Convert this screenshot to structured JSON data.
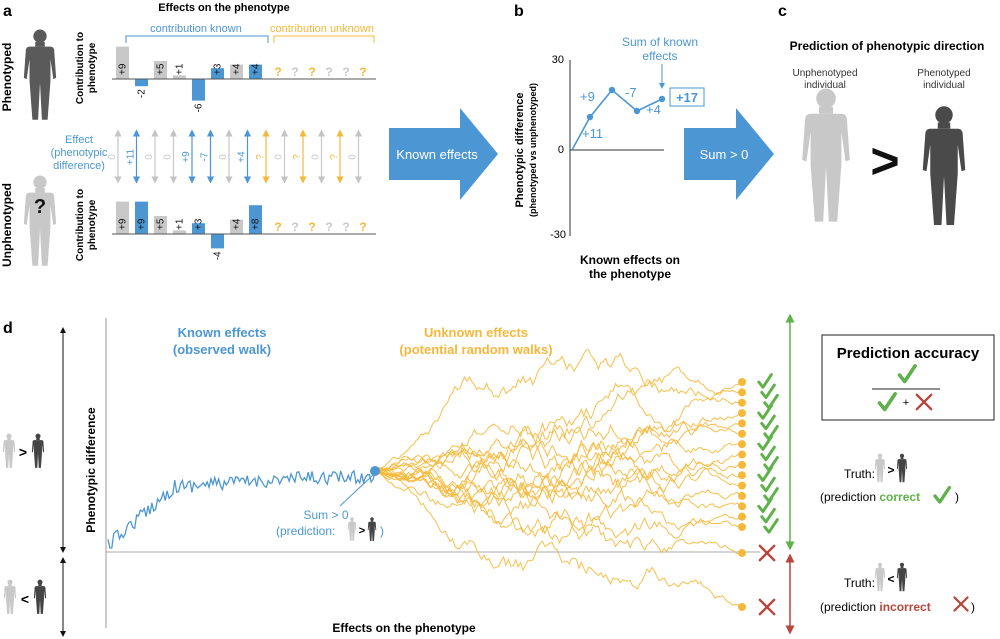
{
  "colors": {
    "blue": "#4c97d3",
    "orange": "#f6b83a",
    "grey": "#c8c8c8",
    "dark": "#3e3e3e",
    "light_grey": "#c4c4c4",
    "green": "#5fb14a",
    "red": "#b8463c"
  },
  "panel_a": {
    "label": "a",
    "title": "Effects on the phenotype",
    "known_label": "contribution known",
    "unknown_label": "contribution unknown",
    "row_phenotyped": "Phenotyped",
    "row_unphenotyped": "Unphenotyped",
    "contribution_axis": "Contribution to phenotype",
    "effect_axis": "Effect (phenotypic difference)",
    "unknown_glyph": "?",
    "phenotyped_bars": [
      {
        "label": "+9",
        "value": 9,
        "color": "grey"
      },
      {
        "label": "-2",
        "value": -2,
        "color": "blue"
      },
      {
        "label": "+5",
        "value": 5,
        "color": "grey"
      },
      {
        "label": "+1",
        "value": 1,
        "color": "grey"
      },
      {
        "label": "-6",
        "value": -6,
        "color": "blue"
      },
      {
        "label": "+3",
        "value": 3,
        "color": "blue"
      },
      {
        "label": "+4",
        "value": 4,
        "color": "grey"
      },
      {
        "label": "+4",
        "value": 4,
        "color": "blue"
      }
    ],
    "effects": [
      {
        "label": "0",
        "color": "grey"
      },
      {
        "label": "+11",
        "color": "blue"
      },
      {
        "label": "0",
        "color": "grey"
      },
      {
        "label": "0",
        "color": "grey"
      },
      {
        "label": "+9",
        "color": "blue"
      },
      {
        "label": "-7",
        "color": "blue"
      },
      {
        "label": "0",
        "color": "grey"
      },
      {
        "label": "+4",
        "color": "blue"
      },
      {
        "label": "?",
        "color": "orange"
      },
      {
        "label": "0",
        "color": "grey"
      },
      {
        "label": "?",
        "color": "orange"
      },
      {
        "label": "0",
        "color": "grey"
      },
      {
        "label": "?",
        "color": "orange"
      },
      {
        "label": "0",
        "color": "grey"
      }
    ],
    "unphenotyped_bars": [
      {
        "label": "+9",
        "value": 9,
        "color": "grey"
      },
      {
        "label": "+9",
        "value": 9,
        "color": "blue"
      },
      {
        "label": "+5",
        "value": 5,
        "color": "grey"
      },
      {
        "label": "+1",
        "value": 1,
        "color": "grey"
      },
      {
        "label": "+3",
        "value": 3,
        "color": "blue"
      },
      {
        "label": "-4",
        "value": -4,
        "color": "blue"
      },
      {
        "label": "+4",
        "value": 4,
        "color": "grey"
      },
      {
        "label": "+8",
        "value": 8,
        "color": "blue"
      }
    ],
    "unknown_marks": [
      {
        "color": "orange"
      },
      {
        "color": "grey"
      },
      {
        "color": "orange"
      },
      {
        "color": "grey"
      },
      {
        "color": "grey"
      },
      {
        "color": "orange"
      }
    ],
    "arrow_label": "Known effects"
  },
  "panel_b": {
    "label": "b",
    "ylabel": "Phenotypic difference",
    "ylabel_sub": "(phenotyped vs unphenotyped)",
    "xlabel": "Known effects on the phenotype",
    "tick_top": "30",
    "tick_zero": "0",
    "tick_bottom": "-30",
    "ylim": [
      -30,
      30
    ],
    "walk_points": [
      0,
      11,
      20,
      13,
      17
    ],
    "step_labels": [
      "+11",
      "+9",
      "-7",
      "+4"
    ],
    "sum_annotation": "Sum of known effects",
    "sum_value": "+17",
    "arrow_label": "Sum > 0"
  },
  "panel_c": {
    "label": "c",
    "title": "Prediction of phenotypic direction",
    "left_caption": "Unphenotyped individual",
    "right_caption": "Phenotyped individual",
    "comparator": ">"
  },
  "panel_d": {
    "label": "d",
    "ylabel": "Phenotypic difference",
    "xlabel": "Effects on the phenotype",
    "known_title": "Known effects",
    "known_sub": "(observed walk)",
    "unknown_title": "Unknown effects",
    "unknown_sub": "(potential random walks)",
    "sum_label": "Sum > 0",
    "prediction_label": "(prediction:",
    "prediction_close": ")",
    "greater": ">",
    "less": "<",
    "accuracy_title": "Prediction accuracy",
    "plus": "+",
    "truth_label": "Truth:",
    "prediction_open": "(prediction",
    "correct": "correct",
    "incorrect": "incorrect",
    "close_paren": ")",
    "walk_endpoints_correct": 15,
    "walk_endpoints_incorrect": 2
  }
}
